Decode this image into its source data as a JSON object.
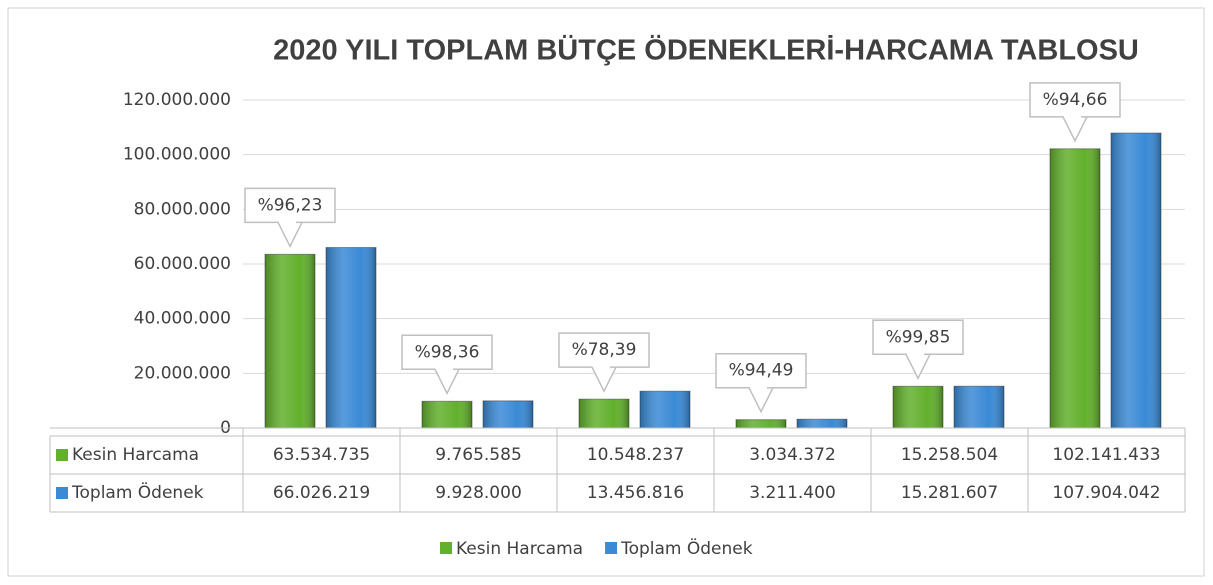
{
  "chart_data": {
    "type": "bar",
    "title": "2020 YILI TOPLAM BÜTÇE ÖDENEKLERİ-HARCAMA TABLOSU",
    "categories": [
      null,
      null,
      null,
      null,
      null,
      null
    ],
    "series": [
      {
        "name": "Kesin Harcama",
        "color": "#62b02c",
        "values": [
          63534735,
          9765585,
          10548237,
          3034372,
          15258504,
          102141433
        ],
        "value_labels": [
          "63.534.735",
          "9.765.585",
          "10.548.237",
          "3.034.372",
          "15.258.504",
          "102.141.433"
        ]
      },
      {
        "name": "Toplam Ödenek",
        "color": "#3a8ad6",
        "values": [
          66026219,
          9928000,
          13456816,
          3211400,
          15281607,
          107904042
        ],
        "value_labels": [
          "66.026.219",
          "9.928.000",
          "13.456.816",
          "3.211.400",
          "15.281.607",
          "107.904.042"
        ]
      }
    ],
    "annotations": [
      "%96,23",
      "%98,36",
      "%78,39",
      "%94,49",
      "%99,85",
      "%94,66"
    ],
    "ylim": [
      0,
      120000000
    ],
    "yticks": [
      0,
      {
        "value": 20000000,
        "label": "20.000.000"
      },
      {
        "value": 40000000,
        "label": "40.000.000"
      },
      {
        "value": 60000000,
        "label": "60.000.000"
      },
      {
        "value": 80000000,
        "label": "80.000.000"
      },
      {
        "value": 100000000,
        "label": "100.000.000"
      },
      {
        "value": 120000000,
        "label": "120.000.000"
      }
    ],
    "grid": true,
    "legend": "bottom"
  }
}
